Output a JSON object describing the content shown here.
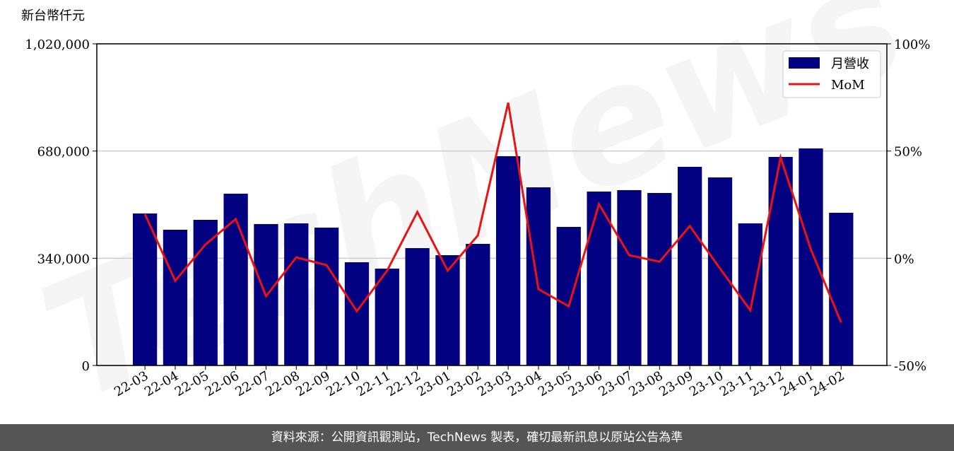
{
  "chart_data": {
    "type": "bar",
    "y_label": "新台幣仟元",
    "watermark": "TechNews",
    "categories": [
      "22-03",
      "22-04",
      "22-05",
      "22-06",
      "22-07",
      "22-08",
      "22-09",
      "22-10",
      "22-11",
      "22-12",
      "23-01",
      "23-02",
      "23-03",
      "23-04",
      "23-05",
      "23-06",
      "23-07",
      "23-08",
      "23-09",
      "23-10",
      "23-11",
      "23-12",
      "24-01",
      "24-02"
    ],
    "series": [
      {
        "name": "月營收",
        "color": "#000080",
        "type": "bar",
        "values": [
          482000,
          430400,
          461800,
          544700,
          448400,
          450600,
          437100,
          327300,
          307100,
          372100,
          349700,
          385600,
          663600,
          564900,
          439400,
          551500,
          556000,
          547000,
          629900,
          596300,
          450600,
          661300,
          688200,
          484200
        ]
      },
      {
        "name": "MoM",
        "color": "#ee1111",
        "type": "line",
        "axis": "y2",
        "values": [
          20.6,
          -10.5,
          6.4,
          18.3,
          -17.7,
          0.4,
          -3.2,
          -24.7,
          -5.8,
          21.6,
          -5.8,
          10.7,
          72.5,
          -14.4,
          -22.4,
          25.2,
          1.4,
          -1.6,
          15,
          -4.8,
          -24.3,
          47,
          4.1,
          -30
        ]
      }
    ],
    "ylim": [
      0,
      1020000
    ],
    "yticks": [
      0,
      {
        "value": 340000,
        "label": "340,000"
      },
      {
        "value": 680000,
        "label": "680,000"
      },
      {
        "value": 1020000,
        "label": "1,020,000"
      }
    ],
    "y2lim": [
      -50,
      100
    ],
    "y2ticks": [
      {
        "value": -50,
        "label": "-50%"
      },
      {
        "value": 0,
        "label": "0%"
      },
      {
        "value": 50,
        "label": "50%"
      },
      {
        "value": 100,
        "label": "100%"
      }
    ],
    "grid": true,
    "legend": "upper right"
  },
  "footer": "資料來源：公開資訊觀測站，TechNews 製表，確切最新訊息以原站公告為準"
}
